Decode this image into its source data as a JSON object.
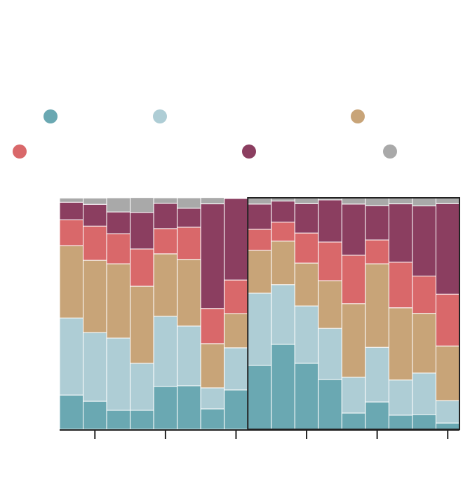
{
  "chart_data": {
    "type": "stacked_bar",
    "categories": [
      null,
      null,
      null,
      null,
      null,
      null,
      null,
      null,
      null,
      null,
      null,
      null,
      null,
      null,
      null,
      null,
      null
    ],
    "ylim": [
      0,
      100
    ],
    "xticks": [
      1,
      4,
      7,
      10,
      13,
      16
    ],
    "highlight": [
      8,
      16
    ],
    "series": [
      {
        "color": "#6aa8b2",
        "values": [
          14.8,
          12.1,
          8.2,
          8.2,
          18.5,
          18.8,
          8.8,
          17.0,
          27.6,
          36.7,
          28.5,
          21.5,
          7.0,
          11.8,
          6.1,
          6.4,
          2.7
        ]
      },
      {
        "color": "#aecdd5",
        "values": [
          33.3,
          29.7,
          31.2,
          20.3,
          30.3,
          25.8,
          9.1,
          18.2,
          31.2,
          25.8,
          24.8,
          22.1,
          15.5,
          23.6,
          15.2,
          17.9,
          9.7
        ]
      },
      {
        "color": "#c8a478",
        "values": [
          31.2,
          31.2,
          32.1,
          33.3,
          27.0,
          28.8,
          19.1,
          14.8,
          18.5,
          18.8,
          18.5,
          20.6,
          31.8,
          36.1,
          31.2,
          25.8,
          23.6
        ]
      },
      {
        "color": "#d9686a",
        "values": [
          11.2,
          14.8,
          13.0,
          16.1,
          10.9,
          13.9,
          15.2,
          14.5,
          9.1,
          8.2,
          13.0,
          16.7,
          20.9,
          10.3,
          19.7,
          16.1,
          22.4
        ]
      },
      {
        "color": "#8b3e60",
        "values": [
          7.6,
          9.4,
          9.4,
          15.8,
          10.9,
          8.2,
          45.2,
          35.2,
          10.9,
          9.1,
          12.7,
          18.2,
          22.1,
          14.8,
          25.2,
          30.3,
          39.1
        ]
      },
      {
        "color": "#a9a9a9",
        "values": [
          1.8,
          2.7,
          6.1,
          6.4,
          2.4,
          4.5,
          2.7,
          0.3,
          2.7,
          1.5,
          2.4,
          0.9,
          2.7,
          3.3,
          2.7,
          3.6,
          2.4
        ]
      }
    ]
  }
}
